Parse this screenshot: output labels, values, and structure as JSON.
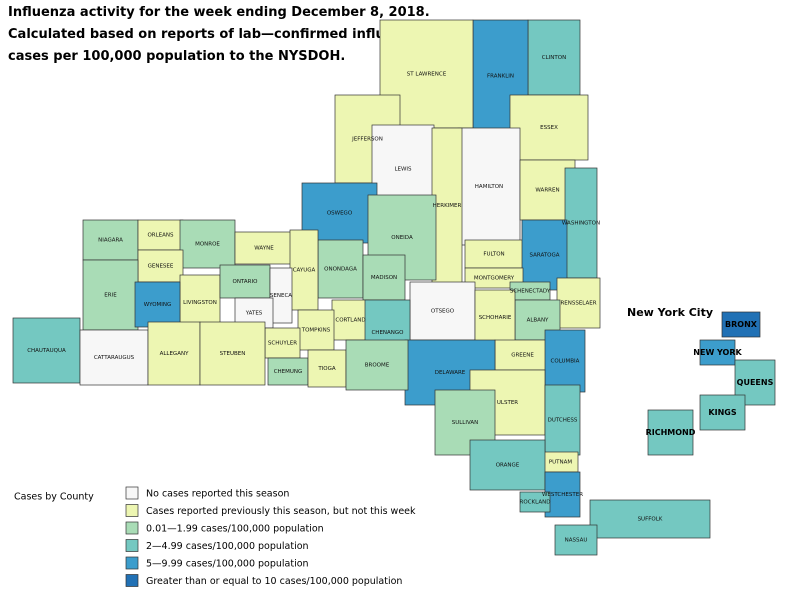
{
  "title_lines": [
    "Influenza activity for the week ending December 8, 2018.",
    "Calculated based on reports of lab—confirmed influenza",
    "cases per 100,000 population to the NYSDOH."
  ],
  "inset_title": "New York City",
  "legend": {
    "title": "Cases by County",
    "items": [
      {
        "label": "No cases reported this season",
        "color": "#f7f7f7"
      },
      {
        "label": "Cases reported previously this season, but not this week",
        "color": "#edf6b2"
      },
      {
        "label": "0.01—1.99 cases/100,000 population",
        "color": "#a9dcb6"
      },
      {
        "label": "2—4.99 cases/100,000 population",
        "color": "#74c8c1"
      },
      {
        "label": "5—9.99 cases/100,000 population",
        "color": "#3c9dcc"
      },
      {
        "label": "Greater than or equal to 10 cases/100,000 population",
        "color": "#2171b5"
      }
    ]
  },
  "counties": [
    {
      "name": "CLINTON",
      "category": 3
    },
    {
      "name": "FRANKLIN",
      "category": 4
    },
    {
      "name": "ST LAWRENCE",
      "category": 1
    },
    {
      "name": "ESSEX",
      "category": 1
    },
    {
      "name": "JEFFERSON",
      "category": 1
    },
    {
      "name": "LEWIS",
      "category": 0
    },
    {
      "name": "HAMILTON",
      "category": 0
    },
    {
      "name": "WARREN",
      "category": 1
    },
    {
      "name": "OSWEGO",
      "category": 4
    },
    {
      "name": "HERKIMER",
      "category": 1
    },
    {
      "name": "WASHINGTON",
      "category": 3
    },
    {
      "name": "NIAGARA",
      "category": 2
    },
    {
      "name": "ORLEANS",
      "category": 1
    },
    {
      "name": "MONROE",
      "category": 2
    },
    {
      "name": "WAYNE",
      "category": 1
    },
    {
      "name": "ONEIDA",
      "category": 2
    },
    {
      "name": "FULTON",
      "category": 1
    },
    {
      "name": "SARATOGA",
      "category": 4
    },
    {
      "name": "GENESEE",
      "category": 1
    },
    {
      "name": "ONONDAGA",
      "category": 2
    },
    {
      "name": "CAYUGA",
      "category": 1
    },
    {
      "name": "MADISON",
      "category": 2
    },
    {
      "name": "MONTGOMERY",
      "category": 1
    },
    {
      "name": "SCHENECTADY",
      "category": 2
    },
    {
      "name": "ERIE",
      "category": 2
    },
    {
      "name": "LIVINGSTON",
      "category": 1
    },
    {
      "name": "ONTARIO",
      "category": 2
    },
    {
      "name": "SENECA",
      "category": 0
    },
    {
      "name": "RENSSELAER",
      "category": 1
    },
    {
      "name": "WYOMING",
      "category": 4
    },
    {
      "name": "YATES",
      "category": 0
    },
    {
      "name": "ALBANY",
      "category": 2
    },
    {
      "name": "OTSEGO",
      "category": 0
    },
    {
      "name": "SCHOHARIE",
      "category": 1
    },
    {
      "name": "CORTLAND",
      "category": 1
    },
    {
      "name": "TOMPKINS",
      "category": 1
    },
    {
      "name": "CHENANGO",
      "category": 3
    },
    {
      "name": "SCHUYLER",
      "category": 1
    },
    {
      "name": "CHAUTAUQUA",
      "category": 3
    },
    {
      "name": "CATTARAUGUS",
      "category": 0
    },
    {
      "name": "ALLEGANY",
      "category": 1
    },
    {
      "name": "STEUBEN",
      "category": 1
    },
    {
      "name": "GREENE",
      "category": 1
    },
    {
      "name": "COLUMBIA",
      "category": 4
    },
    {
      "name": "DELAWARE",
      "category": 4
    },
    {
      "name": "CHEMUNG",
      "category": 2
    },
    {
      "name": "TIOGA",
      "category": 1
    },
    {
      "name": "BROOME",
      "category": 2
    },
    {
      "name": "ULSTER",
      "category": 1
    },
    {
      "name": "DUTCHESS",
      "category": 3
    },
    {
      "name": "SULLIVAN",
      "category": 2
    },
    {
      "name": "PUTNAM",
      "category": 1
    },
    {
      "name": "ORANGE",
      "category": 3
    },
    {
      "name": "WESTCHESTER",
      "category": 4
    },
    {
      "name": "ROCKLAND",
      "category": 3
    },
    {
      "name": "SUFFOLK",
      "category": 3
    },
    {
      "name": "NASSAU",
      "category": 3
    },
    {
      "name": "BRONX",
      "category": 5
    },
    {
      "name": "NEW YORK",
      "category": 4
    },
    {
      "name": "QUEENS",
      "category": 3
    },
    {
      "name": "KINGS",
      "category": 3
    },
    {
      "name": "RICHMOND",
      "category": 3
    }
  ]
}
